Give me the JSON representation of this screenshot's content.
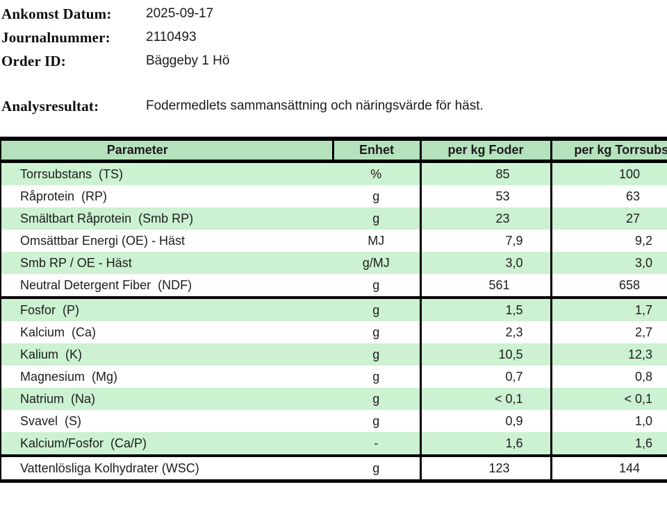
{
  "document": {
    "info": [
      {
        "label": "Ankomst Datum:",
        "value": "2025-09-17"
      },
      {
        "label": "Journalnummer:",
        "value": "2110493"
      },
      {
        "label": "Order ID:",
        "value": "Bäggeby 1 Hö"
      }
    ],
    "analysis": {
      "label": "Analysresultat:",
      "value": "Fodermedlets sammansättning och näringsvärde för häst."
    }
  },
  "table": {
    "columns": [
      "Parameter",
      "Enhet",
      "per kg Foder",
      "per kg Torrsubstans"
    ],
    "rows": [
      {
        "parameter": "Torrsubstans  (TS)",
        "enhet": "%",
        "per_kg_foder": "85",
        "per_kg_torrsubstans": "100"
      },
      {
        "parameter": "Råprotein  (RP)",
        "enhet": "g",
        "per_kg_foder": "53",
        "per_kg_torrsubstans": "63"
      },
      {
        "parameter": "Smältbart Råprotein  (Smb RP)",
        "enhet": "g",
        "per_kg_foder": "23",
        "per_kg_torrsubstans": "27"
      },
      {
        "parameter": "Omsättbar Energi (OE) - Häst",
        "enhet": "MJ",
        "per_kg_foder": "7,9",
        "per_kg_torrsubstans": "9,2"
      },
      {
        "parameter": "Smb RP / OE - Häst",
        "enhet": "g/MJ",
        "per_kg_foder": "3,0",
        "per_kg_torrsubstans": "3,0"
      },
      {
        "parameter": "Neutral Detergent Fiber  (NDF)",
        "enhet": "g",
        "per_kg_foder": "561",
        "per_kg_torrsubstans": "658"
      },
      {
        "parameter": "Fosfor  (P)",
        "enhet": "g",
        "per_kg_foder": "1,5",
        "per_kg_torrsubstans": "1,7"
      },
      {
        "parameter": "Kalcium  (Ca)",
        "enhet": "g",
        "per_kg_foder": "2,3",
        "per_kg_torrsubstans": "2,7"
      },
      {
        "parameter": "Kalium  (K)",
        "enhet": "g",
        "per_kg_foder": "10,5",
        "per_kg_torrsubstans": "12,3"
      },
      {
        "parameter": "Magnesium  (Mg)",
        "enhet": "g",
        "per_kg_foder": "0,7",
        "per_kg_torrsubstans": "0,8"
      },
      {
        "parameter": "Natrium  (Na)",
        "enhet": "g",
        "per_kg_foder": "< 0,1",
        "per_kg_torrsubstans": "< 0,1"
      },
      {
        "parameter": "Svavel  (S)",
        "enhet": "g",
        "per_kg_foder": "0,9",
        "per_kg_torrsubstans": "1,0"
      },
      {
        "parameter": "Kalcium/Fosfor  (Ca/P)",
        "enhet": "-",
        "per_kg_foder": "1,6",
        "per_kg_torrsubstans": "1,6"
      },
      {
        "parameter": "Vattenlösliga Kolhydrater (WSC)",
        "enhet": "g",
        "per_kg_foder": "123",
        "per_kg_torrsubstans": "144"
      }
    ],
    "thick_separator_after_rows": [
      5,
      12
    ],
    "colors": {
      "header_bg": "#b5e2bd",
      "row_green": "#ccf2d1",
      "row_white": "#ffffff",
      "border": "#000000"
    }
  }
}
